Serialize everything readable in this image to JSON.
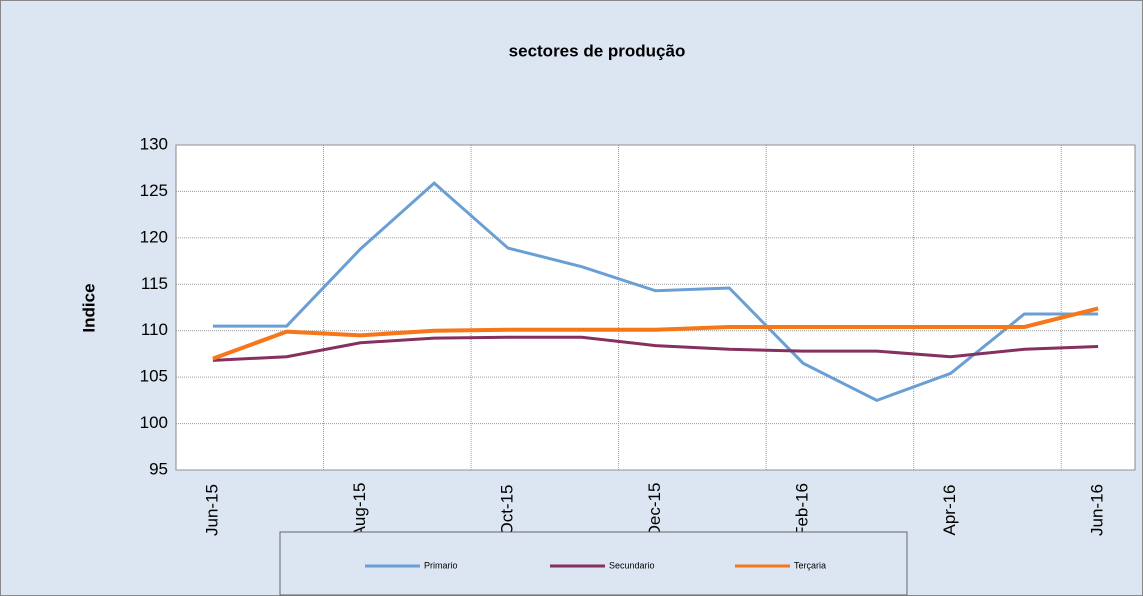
{
  "chart_data": {
    "type": "line",
    "title": "sectores de produção",
    "y_label": "Indice",
    "categories": [
      "Jun-15",
      null,
      "Aug-15",
      null,
      "Oct-15",
      null,
      "Dec-15",
      null,
      "Feb-16",
      null,
      "Apr-16",
      null,
      "Jun-16"
    ],
    "series": [
      {
        "name": "Primario",
        "color": "#6a9fd4",
        "values": [
          110.5,
          110.5,
          118.8,
          125.9,
          118.9,
          116.9,
          114.3,
          114.6,
          106.5,
          102.5,
          105.4,
          111.8,
          111.8
        ]
      },
      {
        "name": "Secundario",
        "color": "#85305f",
        "values": [
          106.8,
          107.2,
          108.7,
          109.2,
          109.3,
          109.3,
          108.4,
          108.0,
          107.8,
          107.8,
          107.2,
          108.0,
          108.3
        ]
      },
      {
        "name": "Terçaria",
        "color": "#f7761a",
        "values": [
          107.0,
          109.9,
          109.5,
          110.0,
          110.1,
          110.1,
          110.1,
          110.4,
          110.4,
          110.4,
          110.4,
          110.4,
          112.4
        ]
      }
    ],
    "ylim": [
      95,
      130
    ],
    "yticks": [
      95,
      100,
      105,
      110,
      115,
      120,
      125,
      130
    ],
    "grid": true,
    "legend": "bottom"
  }
}
